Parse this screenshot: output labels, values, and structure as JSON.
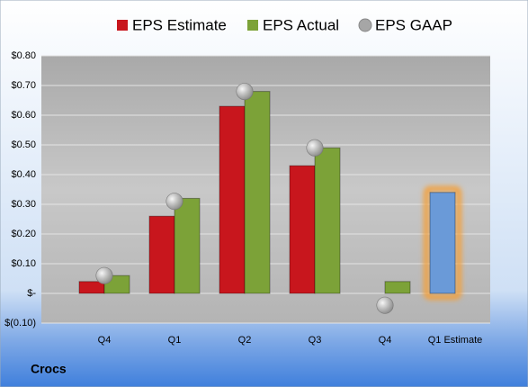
{
  "chart_data": {
    "type": "bar",
    "footer": "Crocs",
    "categories": [
      "Q4",
      "Q1",
      "Q2",
      "Q3",
      "Q4",
      "Q1 Estimate"
    ],
    "series": [
      {
        "name": "EPS Estimate",
        "color": "#c8161d",
        "values": [
          0.04,
          0.26,
          0.63,
          0.43,
          null,
          0.34
        ],
        "point_colors": [
          null,
          null,
          null,
          null,
          null,
          "#6a9ad8"
        ],
        "highlight_color": "#f2a03c"
      },
      {
        "name": "EPS Actual",
        "color": "#7ca238",
        "values": [
          0.06,
          0.32,
          0.68,
          0.49,
          0.04,
          null
        ]
      },
      {
        "name": "EPS GAAP",
        "type": "scatter",
        "color": "#a6a6a6",
        "values": [
          0.06,
          0.31,
          0.68,
          0.49,
          -0.04,
          null
        ]
      }
    ],
    "ylim": [
      -0.1,
      0.8
    ],
    "yticks": [
      {
        "value": -0.1,
        "label": "$(0.10)"
      },
      {
        "value": 0,
        "label": "$-"
      },
      {
        "value": 0.1,
        "label": "$0.10"
      },
      {
        "value": 0.2,
        "label": "$0.20"
      },
      {
        "value": 0.3,
        "label": "$0.30"
      },
      {
        "value": 0.4,
        "label": "$0.40"
      },
      {
        "value": 0.5,
        "label": "$0.50"
      },
      {
        "value": 0.6,
        "label": "$0.60"
      },
      {
        "value": 0.7,
        "label": "$0.70"
      },
      {
        "value": 0.8,
        "label": "$0.80"
      }
    ],
    "grid": true
  }
}
